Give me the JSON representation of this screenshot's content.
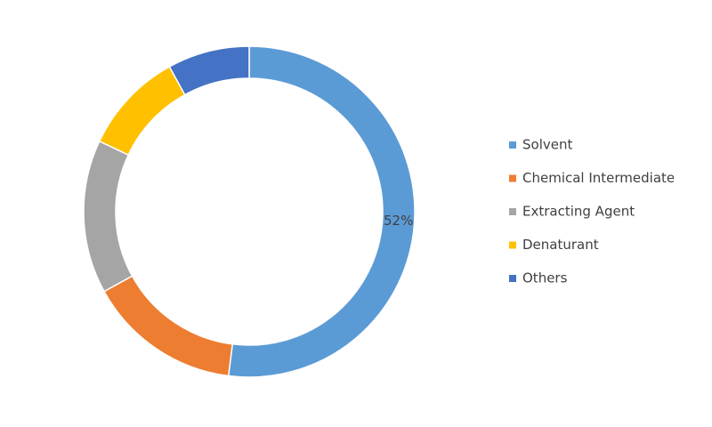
{
  "chart_data": {
    "type": "donut",
    "categories": [
      "Solvent",
      "Chemical Intermediate",
      "Extracting Agent",
      "Denaturant",
      "Others"
    ],
    "values": [
      52,
      15,
      15,
      10,
      8
    ],
    "value_labels": [
      "52%",
      null,
      null,
      null,
      null
    ],
    "colors": [
      "#5b9bd5",
      "#ed7d31",
      "#a5a5a5",
      "#ffc000",
      "#4472c4"
    ],
    "legend": "right"
  }
}
